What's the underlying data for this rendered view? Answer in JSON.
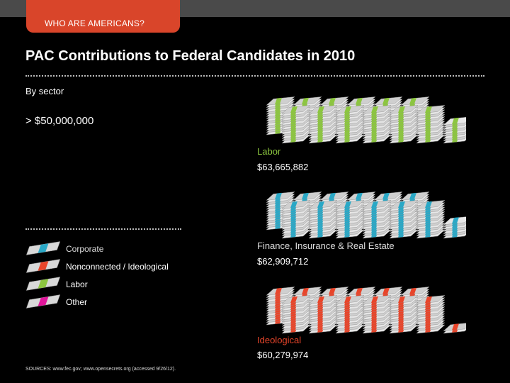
{
  "header": {
    "tab_label": "WHO ARE AMERICANS?"
  },
  "chart_data": {
    "type": "bar",
    "title": "PAC Contributions to Federal Candidates in 2010",
    "subtitle": "By sector",
    "threshold_label": "> $50,000,000",
    "categories": [
      "Labor",
      "Finance, Insurance & Real Estate",
      "Ideological"
    ],
    "values": [
      63665882,
      62909712,
      60279974
    ],
    "value_labels": [
      "$63,665,882",
      "$62,909,712",
      "$60,279,974"
    ],
    "series_type": [
      "Labor",
      "Corporate",
      "Nonconnected / Ideological"
    ],
    "legend": [
      {
        "label": "Corporate",
        "color": "#2aa8c6"
      },
      {
        "label": "Nonconnected / Ideological",
        "color": "#e8452a"
      },
      {
        "label": "Labor",
        "color": "#8cc63f"
      },
      {
        "label": "Other",
        "color": "#e0159a"
      }
    ],
    "sector_colors": [
      "#8cc63f",
      "#2aa8c6",
      "#e8452a"
    ],
    "label_colors": [
      "#8cc63f",
      "#dddddd",
      "#e8452a"
    ]
  },
  "footer": {
    "source": "SOURCES: www.fec.gov; www.opensecrets.org (accessed 9/26/12)."
  }
}
